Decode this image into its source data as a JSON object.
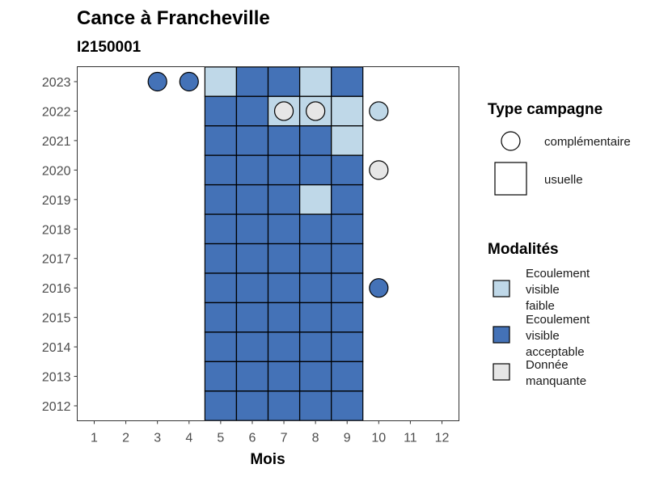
{
  "chart_data": {
    "type": "heatmap",
    "title": "Cance à Francheville",
    "subtitle": "I2150001",
    "xlabel": "Mois",
    "ylabel": "",
    "x_categories": [
      "1",
      "2",
      "3",
      "4",
      "5",
      "6",
      "7",
      "8",
      "9",
      "10",
      "11",
      "12"
    ],
    "y_categories": [
      "2012",
      "2013",
      "2014",
      "2015",
      "2016",
      "2017",
      "2018",
      "2019",
      "2020",
      "2021",
      "2022",
      "2023"
    ],
    "grid": false,
    "legend_position": "right",
    "colors": {
      "Ecoulement visible faible": "#bfd8e8",
      "Ecoulement visible acceptable": "#4472b7",
      "Donnée manquante": "#e6e6e6"
    },
    "legends": {
      "shape": {
        "title": "Type campagne",
        "items": [
          {
            "label": "complémentaire",
            "shape": "circle"
          },
          {
            "label": "usuelle",
            "shape": "square"
          }
        ]
      },
      "fill": {
        "title": "Modalités",
        "items": [
          {
            "lines": [
              "Ecoulement",
              "visible",
              "faible"
            ],
            "value": "Ecoulement visible faible"
          },
          {
            "lines": [
              "Ecoulement",
              "visible",
              "acceptable"
            ],
            "value": "Ecoulement visible acceptable"
          },
          {
            "lines": [
              "Donnée",
              "manquante"
            ],
            "value": "Donnée manquante"
          }
        ]
      }
    },
    "points": [
      {
        "year": "2023",
        "month": 3,
        "campagne": "complémentaire",
        "value": "Ecoulement visible acceptable"
      },
      {
        "year": "2023",
        "month": 4,
        "campagne": "complémentaire",
        "value": "Ecoulement visible acceptable"
      },
      {
        "year": "2023",
        "month": 5,
        "campagne": "usuelle",
        "value": "Ecoulement visible faible"
      },
      {
        "year": "2023",
        "month": 6,
        "campagne": "usuelle",
        "value": "Ecoulement visible acceptable"
      },
      {
        "year": "2023",
        "month": 7,
        "campagne": "usuelle",
        "value": "Ecoulement visible acceptable"
      },
      {
        "year": "2023",
        "month": 8,
        "campagne": "usuelle",
        "value": "Ecoulement visible faible"
      },
      {
        "year": "2023",
        "month": 9,
        "campagne": "usuelle",
        "value": "Ecoulement visible acceptable"
      },
      {
        "year": "2022",
        "month": 5,
        "campagne": "usuelle",
        "value": "Ecoulement visible acceptable"
      },
      {
        "year": "2022",
        "month": 6,
        "campagne": "usuelle",
        "value": "Ecoulement visible acceptable"
      },
      {
        "year": "2022",
        "month": 7,
        "campagne": "usuelle",
        "value": "Ecoulement visible faible"
      },
      {
        "year": "2022",
        "month": 8,
        "campagne": "usuelle",
        "value": "Ecoulement visible faible"
      },
      {
        "year": "2022",
        "month": 9,
        "campagne": "usuelle",
        "value": "Ecoulement visible faible"
      },
      {
        "year": "2022",
        "month": 7,
        "campagne": "complémentaire",
        "value": "Donnée manquante"
      },
      {
        "year": "2022",
        "month": 8,
        "campagne": "complémentaire",
        "value": "Donnée manquante"
      },
      {
        "year": "2022",
        "month": 10,
        "campagne": "complémentaire",
        "value": "Ecoulement visible faible"
      },
      {
        "year": "2021",
        "month": 5,
        "campagne": "usuelle",
        "value": "Ecoulement visible acceptable"
      },
      {
        "year": "2021",
        "month": 6,
        "campagne": "usuelle",
        "value": "Ecoulement visible acceptable"
      },
      {
        "year": "2021",
        "month": 7,
        "campagne": "usuelle",
        "value": "Ecoulement visible acceptable"
      },
      {
        "year": "2021",
        "month": 8,
        "campagne": "usuelle",
        "value": "Ecoulement visible acceptable"
      },
      {
        "year": "2021",
        "month": 9,
        "campagne": "usuelle",
        "value": "Ecoulement visible faible"
      },
      {
        "year": "2020",
        "month": 5,
        "campagne": "usuelle",
        "value": "Ecoulement visible acceptable"
      },
      {
        "year": "2020",
        "month": 6,
        "campagne": "usuelle",
        "value": "Ecoulement visible acceptable"
      },
      {
        "year": "2020",
        "month": 7,
        "campagne": "usuelle",
        "value": "Ecoulement visible acceptable"
      },
      {
        "year": "2020",
        "month": 8,
        "campagne": "usuelle",
        "value": "Ecoulement visible acceptable"
      },
      {
        "year": "2020",
        "month": 9,
        "campagne": "usuelle",
        "value": "Ecoulement visible acceptable"
      },
      {
        "year": "2020",
        "month": 10,
        "campagne": "complémentaire",
        "value": "Donnée manquante"
      },
      {
        "year": "2019",
        "month": 5,
        "campagne": "usuelle",
        "value": "Ecoulement visible acceptable"
      },
      {
        "year": "2019",
        "month": 6,
        "campagne": "usuelle",
        "value": "Ecoulement visible acceptable"
      },
      {
        "year": "2019",
        "month": 7,
        "campagne": "usuelle",
        "value": "Ecoulement visible acceptable"
      },
      {
        "year": "2019",
        "month": 8,
        "campagne": "usuelle",
        "value": "Ecoulement visible faible"
      },
      {
        "year": "2019",
        "month": 9,
        "campagne": "usuelle",
        "value": "Ecoulement visible acceptable"
      },
      {
        "year": "2018",
        "month": 5,
        "campagne": "usuelle",
        "value": "Ecoulement visible acceptable"
      },
      {
        "year": "2018",
        "month": 6,
        "campagne": "usuelle",
        "value": "Ecoulement visible acceptable"
      },
      {
        "year": "2018",
        "month": 7,
        "campagne": "usuelle",
        "value": "Ecoulement visible acceptable"
      },
      {
        "year": "2018",
        "month": 8,
        "campagne": "usuelle",
        "value": "Ecoulement visible acceptable"
      },
      {
        "year": "2018",
        "month": 9,
        "campagne": "usuelle",
        "value": "Ecoulement visible acceptable"
      },
      {
        "year": "2017",
        "month": 5,
        "campagne": "usuelle",
        "value": "Ecoulement visible acceptable"
      },
      {
        "year": "2017",
        "month": 6,
        "campagne": "usuelle",
        "value": "Ecoulement visible acceptable"
      },
      {
        "year": "2017",
        "month": 7,
        "campagne": "usuelle",
        "value": "Ecoulement visible acceptable"
      },
      {
        "year": "2017",
        "month": 8,
        "campagne": "usuelle",
        "value": "Ecoulement visible acceptable"
      },
      {
        "year": "2017",
        "month": 9,
        "campagne": "usuelle",
        "value": "Ecoulement visible acceptable"
      },
      {
        "year": "2016",
        "month": 5,
        "campagne": "usuelle",
        "value": "Ecoulement visible acceptable"
      },
      {
        "year": "2016",
        "month": 6,
        "campagne": "usuelle",
        "value": "Ecoulement visible acceptable"
      },
      {
        "year": "2016",
        "month": 7,
        "campagne": "usuelle",
        "value": "Ecoulement visible acceptable"
      },
      {
        "year": "2016",
        "month": 8,
        "campagne": "usuelle",
        "value": "Ecoulement visible acceptable"
      },
      {
        "year": "2016",
        "month": 9,
        "campagne": "usuelle",
        "value": "Ecoulement visible acceptable"
      },
      {
        "year": "2016",
        "month": 10,
        "campagne": "complémentaire",
        "value": "Ecoulement visible acceptable"
      },
      {
        "year": "2015",
        "month": 5,
        "campagne": "usuelle",
        "value": "Ecoulement visible acceptable"
      },
      {
        "year": "2015",
        "month": 6,
        "campagne": "usuelle",
        "value": "Ecoulement visible acceptable"
      },
      {
        "year": "2015",
        "month": 7,
        "campagne": "usuelle",
        "value": "Ecoulement visible acceptable"
      },
      {
        "year": "2015",
        "month": 8,
        "campagne": "usuelle",
        "value": "Ecoulement visible acceptable"
      },
      {
        "year": "2015",
        "month": 9,
        "campagne": "usuelle",
        "value": "Ecoulement visible acceptable"
      },
      {
        "year": "2014",
        "month": 5,
        "campagne": "usuelle",
        "value": "Ecoulement visible acceptable"
      },
      {
        "year": "2014",
        "month": 6,
        "campagne": "usuelle",
        "value": "Ecoulement visible acceptable"
      },
      {
        "year": "2014",
        "month": 7,
        "campagne": "usuelle",
        "value": "Ecoulement visible acceptable"
      },
      {
        "year": "2014",
        "month": 8,
        "campagne": "usuelle",
        "value": "Ecoulement visible acceptable"
      },
      {
        "year": "2014",
        "month": 9,
        "campagne": "usuelle",
        "value": "Ecoulement visible acceptable"
      },
      {
        "year": "2013",
        "month": 5,
        "campagne": "usuelle",
        "value": "Ecoulement visible acceptable"
      },
      {
        "year": "2013",
        "month": 6,
        "campagne": "usuelle",
        "value": "Ecoulement visible acceptable"
      },
      {
        "year": "2013",
        "month": 7,
        "campagne": "usuelle",
        "value": "Ecoulement visible acceptable"
      },
      {
        "year": "2013",
        "month": 8,
        "campagne": "usuelle",
        "value": "Ecoulement visible acceptable"
      },
      {
        "year": "2013",
        "month": 9,
        "campagne": "usuelle",
        "value": "Ecoulement visible acceptable"
      },
      {
        "year": "2012",
        "month": 5,
        "campagne": "usuelle",
        "value": "Ecoulement visible acceptable"
      },
      {
        "year": "2012",
        "month": 6,
        "campagne": "usuelle",
        "value": "Ecoulement visible acceptable"
      },
      {
        "year": "2012",
        "month": 7,
        "campagne": "usuelle",
        "value": "Ecoulement visible acceptable"
      },
      {
        "year": "2012",
        "month": 8,
        "campagne": "usuelle",
        "value": "Ecoulement visible acceptable"
      },
      {
        "year": "2012",
        "month": 9,
        "campagne": "usuelle",
        "value": "Ecoulement visible acceptable"
      }
    ]
  }
}
